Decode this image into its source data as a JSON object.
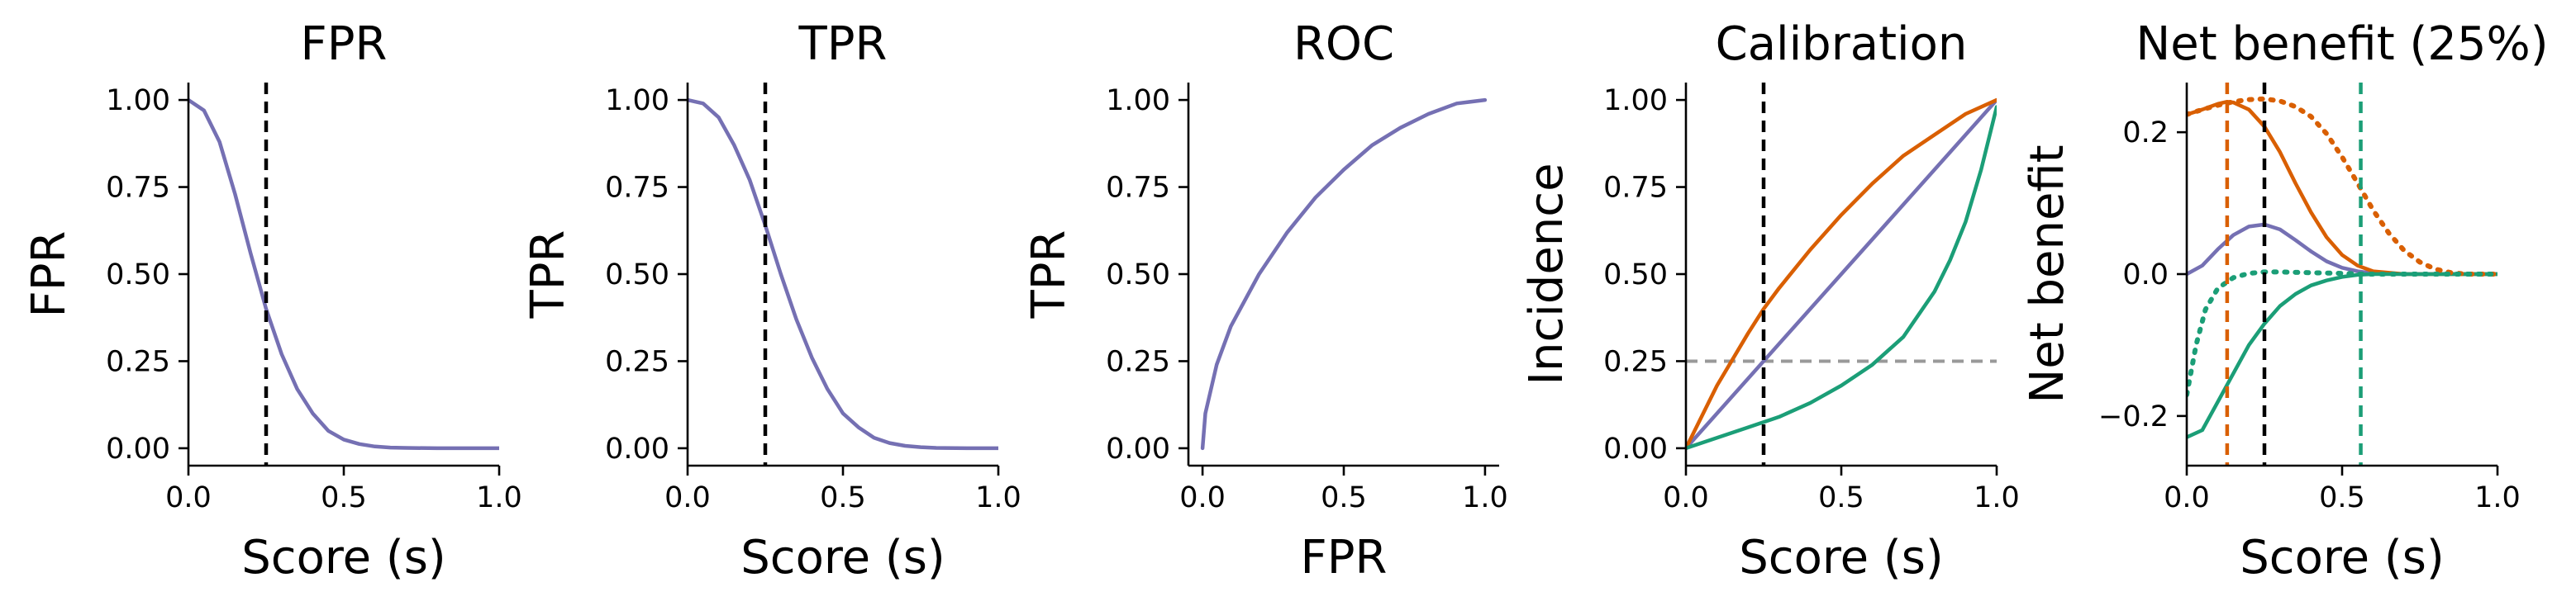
{
  "colors": {
    "base": "#7570b3",
    "high": "#d95f02",
    "low": "#1b9e77",
    "threshold": "#000000",
    "incidence": "#999999"
  },
  "chart_data": [
    {
      "type": "line",
      "title": "FPR",
      "xlabel": "Score (s)",
      "ylabel": "FPR",
      "xlim": [
        0,
        1
      ],
      "ylim": [
        -0.05,
        1.05
      ],
      "xticks": [
        0,
        0.5,
        1
      ],
      "xtick_labels": [
        "0.0",
        "0.5",
        "1.0"
      ],
      "yticks": [
        0,
        0.25,
        0.5,
        0.75,
        1
      ],
      "ytick_labels": [
        "0.00",
        "0.25",
        "0.50",
        "0.75",
        "1.00"
      ],
      "grid": false,
      "series": [
        {
          "color": "base",
          "style": "solid",
          "x": [
            0,
            0.05,
            0.1,
            0.15,
            0.2,
            0.25,
            0.3,
            0.35,
            0.4,
            0.45,
            0.5,
            0.55,
            0.6,
            0.65,
            0.7,
            0.8,
            0.9,
            1.0
          ],
          "y": [
            1.0,
            0.97,
            0.88,
            0.73,
            0.56,
            0.4,
            0.27,
            0.17,
            0.1,
            0.05,
            0.025,
            0.012,
            0.005,
            0.002,
            0.001,
            0,
            0,
            0
          ]
        }
      ],
      "vlines": [
        {
          "x": 0.25,
          "color": "threshold",
          "style": "dashed"
        }
      ],
      "hlines": []
    },
    {
      "type": "line",
      "title": "TPR",
      "xlabel": "Score (s)",
      "ylabel": "TPR",
      "xlim": [
        0,
        1
      ],
      "ylim": [
        -0.05,
        1.05
      ],
      "xticks": [
        0,
        0.5,
        1
      ],
      "xtick_labels": [
        "0.0",
        "0.5",
        "1.0"
      ],
      "yticks": [
        0,
        0.25,
        0.5,
        0.75,
        1
      ],
      "ytick_labels": [
        "0.00",
        "0.25",
        "0.50",
        "0.75",
        "1.00"
      ],
      "grid": false,
      "series": [
        {
          "color": "base",
          "style": "solid",
          "x": [
            0,
            0.05,
            0.1,
            0.15,
            0.2,
            0.25,
            0.3,
            0.35,
            0.4,
            0.45,
            0.5,
            0.55,
            0.6,
            0.65,
            0.7,
            0.75,
            0.8,
            0.9,
            1.0
          ],
          "y": [
            1.0,
            0.99,
            0.95,
            0.87,
            0.77,
            0.64,
            0.5,
            0.37,
            0.26,
            0.17,
            0.1,
            0.06,
            0.03,
            0.015,
            0.007,
            0.003,
            0.001,
            0,
            0
          ]
        }
      ],
      "vlines": [
        {
          "x": 0.25,
          "color": "threshold",
          "style": "dashed"
        }
      ],
      "hlines": []
    },
    {
      "type": "line",
      "title": "ROC",
      "xlabel": "FPR",
      "ylabel": "TPR",
      "xlim": [
        -0.05,
        1.05
      ],
      "ylim": [
        -0.05,
        1.05
      ],
      "xticks": [
        0,
        0.5,
        1
      ],
      "xtick_labels": [
        "0.0",
        "0.5",
        "1.0"
      ],
      "yticks": [
        0,
        0.25,
        0.5,
        0.75,
        1
      ],
      "ytick_labels": [
        "0.00",
        "0.25",
        "0.50",
        "0.75",
        "1.00"
      ],
      "grid": false,
      "series": [
        {
          "color": "base",
          "style": "solid",
          "x": [
            0,
            0.01,
            0.05,
            0.1,
            0.2,
            0.3,
            0.4,
            0.5,
            0.6,
            0.7,
            0.8,
            0.9,
            1.0
          ],
          "y": [
            0,
            0.1,
            0.24,
            0.35,
            0.5,
            0.62,
            0.72,
            0.8,
            0.87,
            0.92,
            0.96,
            0.99,
            1.0
          ]
        }
      ],
      "vlines": [],
      "hlines": []
    },
    {
      "type": "line",
      "title": "Calibration",
      "xlabel": "Score (s)",
      "ylabel": "Incidence",
      "xlim": [
        0,
        1
      ],
      "ylim": [
        -0.05,
        1.05
      ],
      "xticks": [
        0,
        0.5,
        1
      ],
      "xtick_labels": [
        "0.0",
        "0.5",
        "1.0"
      ],
      "yticks": [
        0,
        0.25,
        0.5,
        0.75,
        1
      ],
      "ytick_labels": [
        "0.00",
        "0.25",
        "0.50",
        "0.75",
        "1.00"
      ],
      "grid": false,
      "series": [
        {
          "color": "base",
          "style": "solid",
          "x": [
            0,
            1
          ],
          "y": [
            0,
            1
          ]
        },
        {
          "color": "high",
          "style": "solid",
          "x": [
            0,
            0.1,
            0.2,
            0.25,
            0.3,
            0.4,
            0.5,
            0.6,
            0.7,
            0.8,
            0.9,
            1.0
          ],
          "y": [
            0,
            0.18,
            0.33,
            0.4,
            0.46,
            0.57,
            0.67,
            0.76,
            0.84,
            0.9,
            0.96,
            1.0
          ]
        },
        {
          "color": "low",
          "style": "solid",
          "x": [
            0,
            0.1,
            0.2,
            0.25,
            0.3,
            0.4,
            0.5,
            0.6,
            0.7,
            0.8,
            0.85,
            0.9,
            0.95,
            1.0
          ],
          "y": [
            0,
            0.03,
            0.06,
            0.075,
            0.09,
            0.13,
            0.18,
            0.24,
            0.32,
            0.45,
            0.54,
            0.65,
            0.8,
            0.98
          ]
        }
      ],
      "vlines": [
        {
          "x": 0.25,
          "color": "threshold",
          "style": "dashed"
        }
      ],
      "hlines": [
        {
          "y": 0.25,
          "color": "incidence",
          "style": "dashed"
        }
      ]
    },
    {
      "type": "line",
      "title": "Net benefit (25%)",
      "xlabel": "Score (s)",
      "ylabel": "Net benefit",
      "xlim": [
        0,
        1
      ],
      "ylim": [
        -0.27,
        0.27
      ],
      "xticks": [
        0,
        0.5,
        1
      ],
      "xtick_labels": [
        "0.0",
        "0.5",
        "1.0"
      ],
      "yticks": [
        -0.2,
        0,
        0.2
      ],
      "ytick_labels": [
        "−0.2",
        "0.0",
        "0.2"
      ],
      "grid": false,
      "series": [
        {
          "color": "base",
          "style": "solid",
          "x": [
            0,
            0.05,
            0.1,
            0.15,
            0.2,
            0.25,
            0.3,
            0.35,
            0.4,
            0.45,
            0.5,
            0.55,
            0.6,
            0.7,
            0.8,
            0.9,
            1.0
          ],
          "y": [
            0,
            0.012,
            0.035,
            0.055,
            0.067,
            0.07,
            0.063,
            0.048,
            0.032,
            0.018,
            0.009,
            0.004,
            0.001,
            0,
            0,
            0,
            0
          ]
        },
        {
          "color": "high",
          "style": "solid",
          "x": [
            0,
            0.05,
            0.1,
            0.13,
            0.15,
            0.2,
            0.25,
            0.3,
            0.35,
            0.4,
            0.45,
            0.5,
            0.55,
            0.6,
            0.7,
            0.8,
            0.9,
            1.0
          ],
          "y": [
            0.225,
            0.232,
            0.24,
            0.243,
            0.242,
            0.232,
            0.208,
            0.172,
            0.128,
            0.087,
            0.052,
            0.027,
            0.012,
            0.004,
            0,
            0,
            0,
            0
          ]
        },
        {
          "color": "low",
          "style": "solid",
          "x": [
            0,
            0.05,
            0.1,
            0.15,
            0.2,
            0.25,
            0.3,
            0.35,
            0.4,
            0.45,
            0.5,
            0.55,
            0.6,
            0.7,
            0.8,
            0.9,
            1.0
          ],
          "y": [
            -0.23,
            -0.22,
            -0.18,
            -0.14,
            -0.1,
            -0.07,
            -0.045,
            -0.028,
            -0.016,
            -0.009,
            -0.004,
            -0.001,
            0,
            0,
            0,
            0,
            0
          ]
        },
        {
          "color": "high",
          "style": "dotted",
          "x": [
            0,
            0.05,
            0.1,
            0.15,
            0.2,
            0.25,
            0.3,
            0.35,
            0.4,
            0.45,
            0.5,
            0.55,
            0.6,
            0.65,
            0.7,
            0.75,
            0.8,
            0.85,
            0.9,
            1.0
          ],
          "y": [
            0.225,
            0.232,
            0.238,
            0.243,
            0.246,
            0.247,
            0.244,
            0.236,
            0.222,
            0.198,
            0.165,
            0.128,
            0.09,
            0.058,
            0.033,
            0.017,
            0.007,
            0.002,
            0,
            0
          ]
        },
        {
          "color": "low",
          "style": "dotted",
          "x": [
            0,
            0.03,
            0.06,
            0.1,
            0.15,
            0.2,
            0.25,
            0.3,
            0.4,
            0.5,
            0.56,
            0.6,
            0.7,
            0.8,
            0.9,
            1.0
          ],
          "y": [
            -0.17,
            -0.1,
            -0.05,
            -0.02,
            -0.005,
            0.001,
            0.003,
            0.003,
            0.002,
            0.001,
            0,
            0,
            0,
            0,
            0,
            0
          ]
        }
      ],
      "vlines": [
        {
          "x": 0.13,
          "color": "high",
          "style": "dashed"
        },
        {
          "x": 0.25,
          "color": "threshold",
          "style": "dashed"
        },
        {
          "x": 0.56,
          "color": "low",
          "style": "dashed"
        }
      ],
      "hlines": []
    }
  ]
}
